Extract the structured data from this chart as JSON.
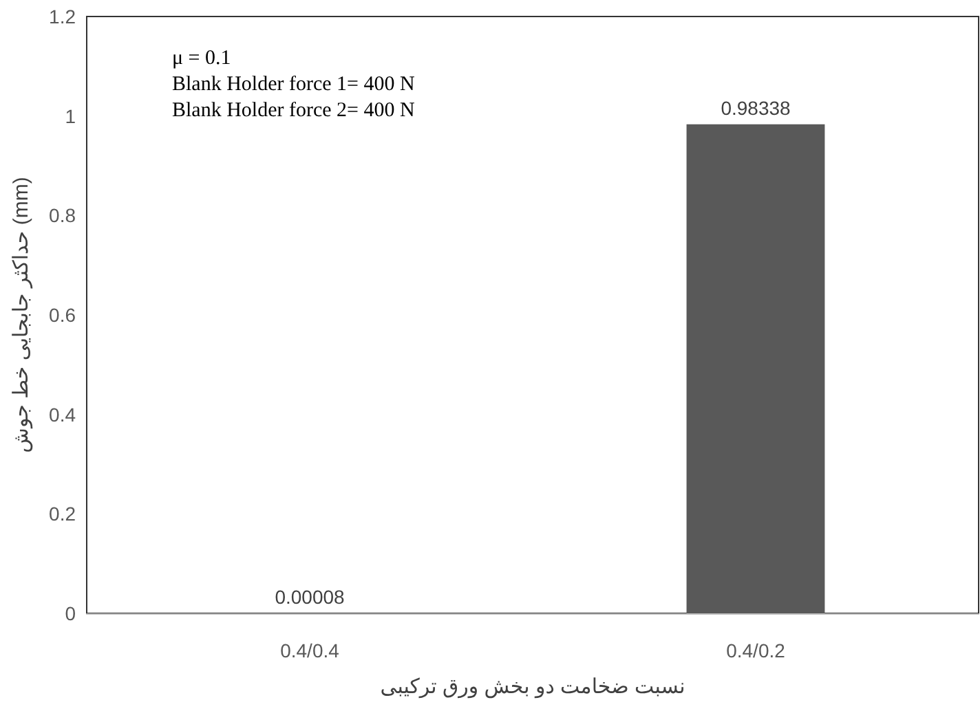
{
  "chart_data": {
    "type": "bar",
    "xlabel": "نسبت ضخامت دو بخش ورق ترکیبی",
    "ylabel": "حداکثر جابجایی خط جوش (mm)",
    "annotations": [
      "μ = 0.1",
      "Blank Holder force 1= 400 N",
      "Blank Holder force 2= 400 N"
    ],
    "categories": [
      "0.4/0.4",
      "0.4/0.2"
    ],
    "values": [
      8e-05,
      0.98338
    ],
    "value_labels": [
      "0.00008",
      "0.98338"
    ],
    "color": "#595959",
    "ylim": [
      0,
      1.2
    ],
    "yticks": [
      0,
      0.2,
      0.4,
      0.6,
      0.8,
      1,
      1.2
    ],
    "grid": false
  }
}
